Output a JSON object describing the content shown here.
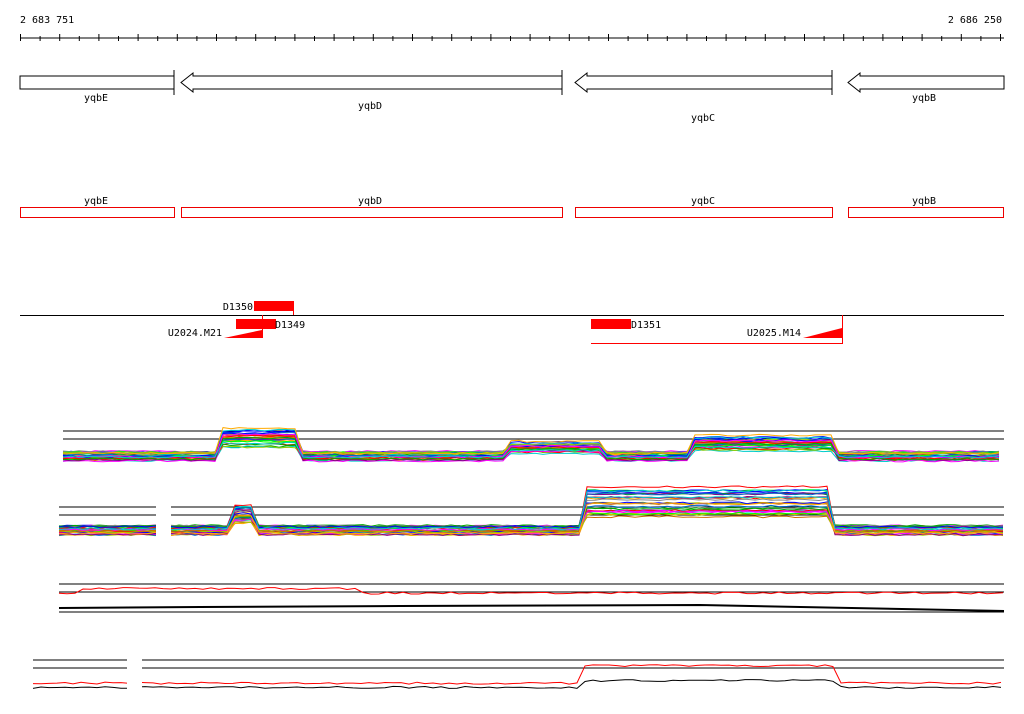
{
  "ruler": {
    "start": "2 683 751",
    "end": "2 686 250"
  },
  "genes": [
    {
      "label": "yqbE"
    },
    {
      "label": "yqbD"
    },
    {
      "label": "yqbC"
    },
    {
      "label": "yqbB"
    }
  ],
  "gene_boxes": [
    {
      "label": "yqbE"
    },
    {
      "label": "yqbD"
    },
    {
      "label": "yqbC"
    },
    {
      "label": "yqbB"
    }
  ],
  "features": [
    {
      "label": "D1350"
    },
    {
      "label": "D1349"
    },
    {
      "label": "U2024.M21"
    },
    {
      "label": "D1351"
    },
    {
      "label": "U2025.M14"
    }
  ]
}
